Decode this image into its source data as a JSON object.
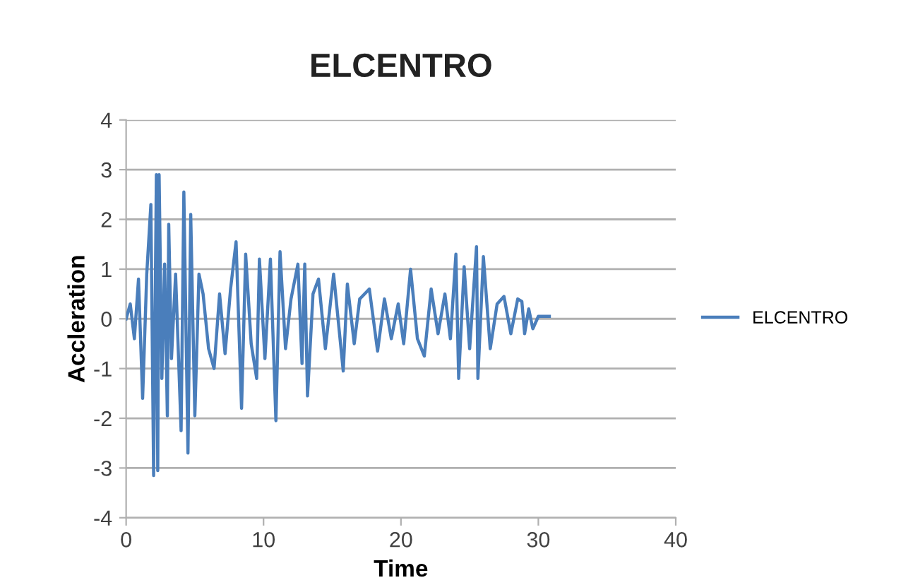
{
  "chart_data": {
    "type": "line",
    "title": "ELCENTRO",
    "xlabel": "Time",
    "ylabel": "Accleration",
    "xlim": [
      0,
      40
    ],
    "xticks": [
      0,
      10,
      20,
      30,
      40
    ],
    "ylim": [
      -4,
      4
    ],
    "yticks": [
      -4,
      -3,
      -2,
      -1,
      0,
      1,
      2,
      3,
      4
    ],
    "grid": "y",
    "legend": "right",
    "marker": "none",
    "line_style": "solid",
    "x": [
      0,
      0.3,
      0.6,
      0.9,
      1.2,
      1.5,
      1.8,
      2.0,
      2.2,
      2.3,
      2.4,
      2.6,
      2.8,
      3.0,
      3.1,
      3.3,
      3.6,
      4.0,
      4.2,
      4.5,
      4.7,
      5.0,
      5.3,
      5.6,
      6.0,
      6.4,
      6.8,
      7.2,
      7.6,
      8.0,
      8.4,
      8.7,
      9.1,
      9.5,
      9.7,
      10.1,
      10.5,
      10.9,
      11.2,
      11.6,
      12.0,
      12.5,
      12.8,
      13.0,
      13.2,
      13.6,
      14.0,
      14.5,
      15.1,
      15.8,
      16.1,
      16.6,
      17.0,
      17.7,
      18.3,
      18.8,
      19.3,
      19.8,
      20.2,
      20.7,
      21.2,
      21.7,
      22.2,
      22.7,
      23.2,
      23.6,
      24.0,
      24.2,
      24.6,
      25.0,
      25.5,
      25.6,
      26.0,
      26.5,
      27.0,
      27.5,
      28.0,
      28.5,
      28.8,
      29.0,
      29.3,
      29.6,
      30.0,
      30.8
    ],
    "series": [
      {
        "name": "ELCENTRO",
        "color": "#4a7ebb",
        "values": [
          0,
          0.3,
          -0.4,
          0.8,
          -1.6,
          0.9,
          2.3,
          -3.15,
          2.9,
          -3.05,
          2.9,
          -1.2,
          1.1,
          -1.95,
          1.9,
          -0.8,
          0.9,
          -2.25,
          2.55,
          -2.7,
          2.1,
          -1.95,
          0.9,
          0.5,
          -0.6,
          -1.0,
          0.5,
          -0.7,
          0.6,
          1.55,
          -1.8,
          1.3,
          -0.5,
          -1.2,
          1.2,
          -0.8,
          1.2,
          -2.05,
          1.35,
          -0.6,
          0.4,
          1.1,
          -0.9,
          1.1,
          -1.55,
          0.5,
          0.8,
          -0.6,
          0.9,
          -1.05,
          0.7,
          -0.5,
          0.4,
          0.6,
          -0.65,
          0.4,
          -0.4,
          0.3,
          -0.5,
          1.0,
          -0.4,
          -0.75,
          0.6,
          -0.3,
          0.5,
          -0.4,
          1.3,
          -1.2,
          1.05,
          -0.6,
          1.45,
          -1.2,
          1.25,
          -0.6,
          0.3,
          0.45,
          -0.3,
          0.4,
          0.35,
          -0.3,
          0.2,
          -0.2,
          0.05,
          0.05
        ]
      }
    ]
  }
}
